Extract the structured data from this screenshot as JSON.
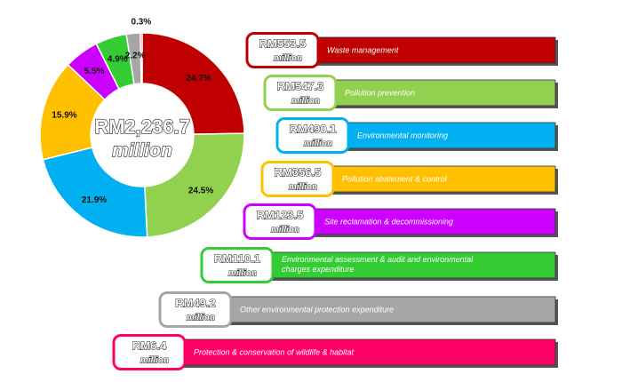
{
  "chart_data": {
    "type": "pie",
    "total": {
      "amount": "RM2,236.7",
      "unit": "million"
    },
    "categories": [
      "Waste management",
      "Pollution prevention",
      "Environmental monitoring",
      "Pollution abatement & control",
      "Site reclamation & decommissioning",
      "Environmental assessment & audit and environmental charges expenditure",
      "Other environmental protection expenditure",
      "Protection & conservation of wildlife & habitat"
    ],
    "category_lines": [
      [
        "Waste management"
      ],
      [
        "Pollution prevention"
      ],
      [
        "Environmental monitoring"
      ],
      [
        "Pollution abatement & control"
      ],
      [
        "Site reclamation & decommissioning"
      ],
      [
        "Environmental assessment & audit and environmental",
        "charges expenditure"
      ],
      [
        "Other environmental protection expenditure"
      ],
      [
        "Protection & conservation of wildlife & habitat"
      ]
    ],
    "values": [
      553.5,
      547.3,
      490.1,
      356.5,
      123.5,
      110.1,
      49.2,
      6.4
    ],
    "amount_labels": [
      "RM553.5",
      "RM547.3",
      "RM490.1",
      "RM356.5",
      "RM123.5",
      "RM110.1",
      "RM49.2",
      "RM6.4"
    ],
    "unit_label": "million",
    "percent_labels": [
      "24.7%",
      "24.5%",
      "21.9%",
      "15.9%",
      "5.5%",
      "4.9%",
      "2.2%",
      "0.3%"
    ],
    "colors": [
      "#c00000",
      "#92d050",
      "#00b0f0",
      "#ffc000",
      "#cc00ff",
      "#33cc33",
      "#a6a6a6",
      "#ff0066"
    ]
  }
}
